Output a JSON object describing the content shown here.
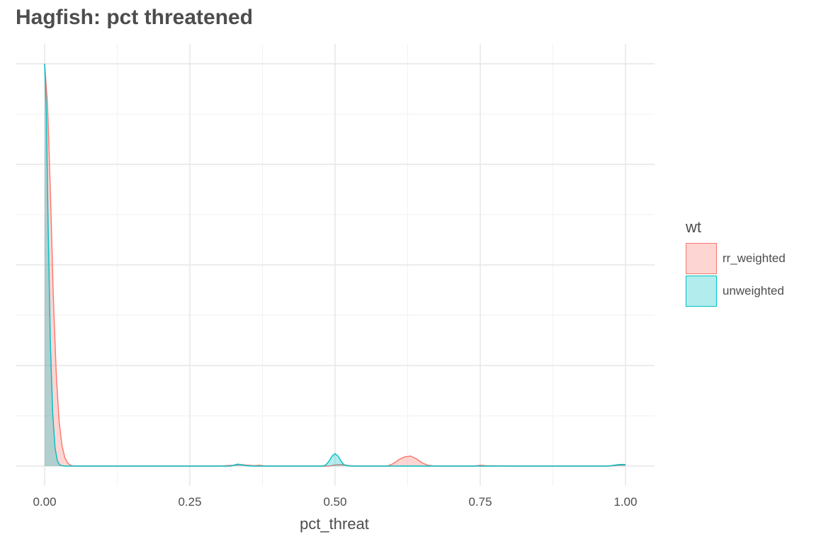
{
  "chart_data": {
    "type": "area",
    "title": "Hagfish: pct threatened",
    "xlabel": "pct_threat",
    "ylabel": "",
    "xlim": [
      -0.05,
      1.05
    ],
    "ylim": [
      0,
      1.05
    ],
    "x_ticks": [
      0,
      0.25,
      0.5,
      0.75,
      1.0
    ],
    "x_tick_labels": [
      "0.00",
      "0.25",
      "0.50",
      "0.75",
      "1.00"
    ],
    "y_gridlines": [
      0,
      0.25,
      0.5,
      0.75,
      1.0
    ],
    "y_tick_labels_shown": false,
    "grid": true,
    "legend": {
      "title": "wt",
      "position": "right",
      "entries": [
        "rr_weighted",
        "unweighted"
      ]
    },
    "series": [
      {
        "name": "rr_weighted",
        "line_color": "#F8766D",
        "fill_color": "#F8766D",
        "fill_opacity": 0.3,
        "x": [
          0,
          0.005,
          0.01,
          0.015,
          0.02,
          0.025,
          0.03,
          0.035,
          0.04,
          0.045,
          0.05,
          0.2,
          0.3,
          0.325,
          0.337,
          0.35,
          0.36,
          0.37,
          0.38,
          0.4,
          0.49,
          0.5,
          0.51,
          0.52,
          0.53,
          0.59,
          0.6,
          0.61,
          0.62,
          0.63,
          0.64,
          0.65,
          0.66,
          0.67,
          0.74,
          0.75,
          0.76,
          0.8,
          0.97,
          0.98,
          0.99,
          1.0
        ],
        "y": [
          1.0,
          0.9,
          0.68,
          0.42,
          0.23,
          0.11,
          0.05,
          0.02,
          0.007,
          0.002,
          0,
          0,
          0,
          0.002,
          0.004,
          0.002,
          0.001,
          0.002,
          0,
          0,
          0,
          0.003,
          0.004,
          0.002,
          0,
          0,
          0.006,
          0.016,
          0.023,
          0.025,
          0.018,
          0.008,
          0.002,
          0,
          0,
          0.002,
          0.001,
          0,
          0,
          0.001,
          0.003,
          0.003
        ]
      },
      {
        "name": "unweighted",
        "line_color": "#00BFC4",
        "fill_color": "#00BFC4",
        "fill_opacity": 0.3,
        "x": [
          0,
          0.003,
          0.006,
          0.01,
          0.014,
          0.018,
          0.022,
          0.026,
          0.03,
          0.035,
          0.04,
          0.3,
          0.32,
          0.327,
          0.333,
          0.34,
          0.347,
          0.36,
          0.48,
          0.485,
          0.49,
          0.495,
          0.5,
          0.505,
          0.51,
          0.515,
          0.52,
          0.53,
          0.97,
          0.98,
          0.99,
          1.0
        ],
        "y": [
          1.0,
          0.88,
          0.6,
          0.3,
          0.13,
          0.045,
          0.013,
          0.003,
          0.001,
          0,
          0,
          0,
          0,
          0.003,
          0.005,
          0.003,
          0.001,
          0,
          0,
          0.004,
          0.013,
          0.025,
          0.031,
          0.025,
          0.013,
          0.004,
          0.001,
          0,
          0,
          0.002,
          0.004,
          0.004
        ]
      }
    ]
  }
}
